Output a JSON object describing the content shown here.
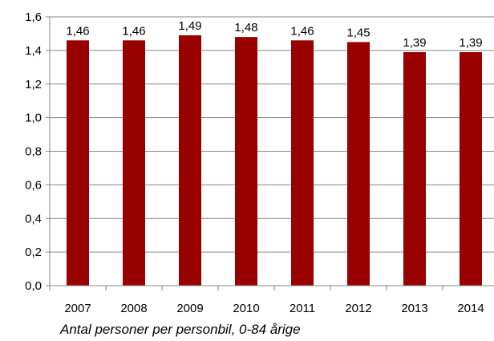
{
  "chart_data": {
    "type": "bar",
    "categories": [
      "2007",
      "2008",
      "2009",
      "2010",
      "2011",
      "2012",
      "2013",
      "2014"
    ],
    "values": [
      1.46,
      1.46,
      1.49,
      1.48,
      1.46,
      1.45,
      1.39,
      1.39
    ],
    "data_labels": [
      "1,46",
      "1,46",
      "1,49",
      "1,48",
      "1,46",
      "1,45",
      "1,39",
      "1,39"
    ],
    "y_ticks": [
      "0,0",
      "0,2",
      "0,4",
      "0,6",
      "0,8",
      "1,0",
      "1,2",
      "1,4",
      "1,6"
    ],
    "ylim": [
      0,
      1.6
    ],
    "grid": "horizontal",
    "legend": "none",
    "bar_color": "#990000",
    "caption": "Antal personer per personbil, 0-84 årige"
  }
}
